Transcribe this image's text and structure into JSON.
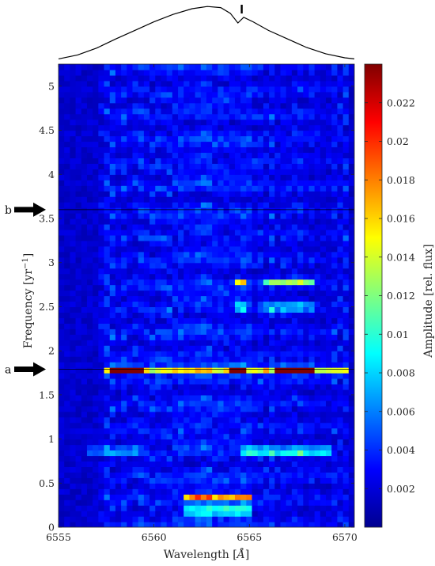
{
  "chart_data": {
    "type": "heatmap",
    "title": "",
    "xlabel_text": "Wavelength",
    "xlabel_unit": "Å",
    "ylabel_text": "Frequency",
    "ylabel_unit": "yr",
    "ylabel_unit_exp": "−1",
    "colorbar_label": "Amplitude [rel. flux]",
    "xlim": [
      6555,
      6570.5
    ],
    "ylim": [
      0,
      5.25
    ],
    "xticks": [
      6555,
      6560,
      6565,
      6570
    ],
    "yticks": [
      0,
      0.5,
      1,
      1.5,
      2,
      2.5,
      3,
      3.5,
      4,
      4.5,
      5
    ],
    "ytick_labels": [
      "0",
      "0.5",
      "1",
      "1.5",
      "2",
      "2.5",
      "3",
      "3.5",
      "4",
      "4.5",
      "5"
    ],
    "colorbar_range": [
      0,
      0.024
    ],
    "colorbar_ticks": [
      0.002,
      0.004,
      0.006,
      0.008,
      0.01,
      0.012,
      0.014,
      0.016,
      0.018,
      0.02,
      0.022
    ],
    "colorbar_tick_labels": [
      "0.002",
      "0.004",
      "0.006",
      "0.008",
      "0.01",
      "0.012",
      "0.014",
      "0.016",
      "0.018",
      "0.02",
      "0.022"
    ],
    "colormap": "jet",
    "markers": [
      {
        "label": "a",
        "frequency": 1.79
      },
      {
        "label": "b",
        "frequency": 3.6
      }
    ],
    "top_profile": {
      "x": [
        6555,
        6556,
        6557,
        6558,
        6559,
        6560,
        6561,
        6562,
        6562.8,
        6563.5,
        6564.0,
        6564.4,
        6564.7,
        6565.2,
        6566,
        6567,
        6568,
        6569,
        6570,
        6570.5
      ],
      "y": [
        0.05,
        0.12,
        0.24,
        0.4,
        0.55,
        0.7,
        0.83,
        0.93,
        0.97,
        0.95,
        0.85,
        0.68,
        0.78,
        0.7,
        0.55,
        0.4,
        0.25,
        0.14,
        0.07,
        0.05
      ],
      "tick_x": 6564.6
    },
    "bright_features": [
      {
        "frequency": 1.79,
        "x_from": 6557.3,
        "x_to": 6570.2,
        "amplitude": 0.016
      },
      {
        "frequency": 1.79,
        "x_from": 6566.2,
        "x_to": 6568.4,
        "amplitude": 0.022
      },
      {
        "frequency": 1.79,
        "x_from": 6564.0,
        "x_to": 6564.9,
        "amplitude": 0.02
      },
      {
        "frequency": 1.79,
        "x_from": 6557.8,
        "x_to": 6559.6,
        "amplitude": 0.017
      },
      {
        "frequency": 0.33,
        "x_from": 6561.5,
        "x_to": 6565.0,
        "amplitude": 0.019
      },
      {
        "frequency": 0.19,
        "x_from": 6561.5,
        "x_to": 6565.0,
        "amplitude": 0.016
      },
      {
        "frequency": 0.87,
        "x_from": 6564.6,
        "x_to": 6569.2,
        "amplitude": 0.013
      },
      {
        "frequency": 0.87,
        "x_from": 6556.6,
        "x_to": 6559.3,
        "amplitude": 0.009
      },
      {
        "frequency": 2.78,
        "x_from": 6565.8,
        "x_to": 6568.5,
        "amplitude": 0.012
      },
      {
        "frequency": 2.78,
        "x_from": 6564.1,
        "x_to": 6564.8,
        "amplitude": 0.015
      },
      {
        "frequency": 2.5,
        "x_from": 6564.1,
        "x_to": 6564.8,
        "amplitude": 0.013
      },
      {
        "frequency": 2.5,
        "x_from": 6565.8,
        "x_to": 6568.5,
        "amplitude": 0.01
      }
    ]
  }
}
